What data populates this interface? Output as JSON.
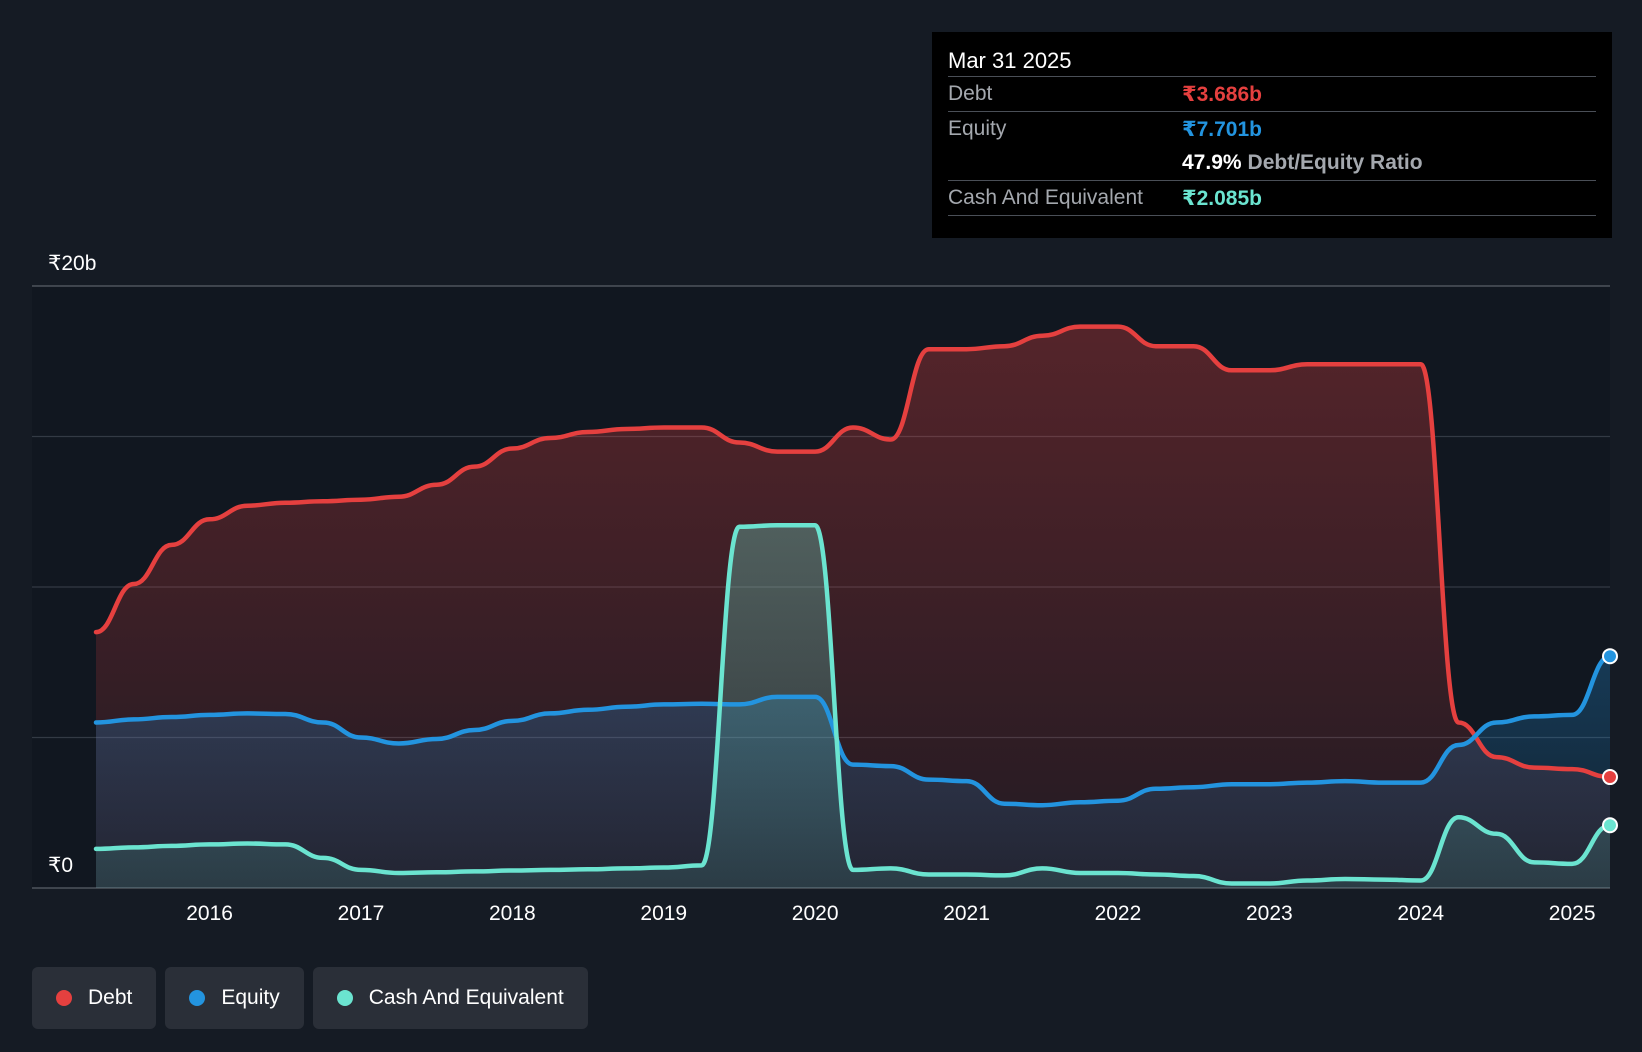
{
  "tooltip": {
    "date": "Mar 31 2025",
    "debt_label": "Debt",
    "debt_value": "₹3.686b",
    "equity_label": "Equity",
    "equity_value": "₹7.701b",
    "ratio_value": "47.9%",
    "ratio_label": "Debt/Equity Ratio",
    "cash_label": "Cash And Equivalent",
    "cash_value": "₹2.085b"
  },
  "legend": [
    {
      "label": "Debt",
      "color": "#e5403f"
    },
    {
      "label": "Equity",
      "color": "#2394df"
    },
    {
      "label": "Cash And Equivalent",
      "color": "#6be4d0"
    }
  ],
  "chart_data": {
    "type": "area",
    "x_unit": "year",
    "y_tick_labels": [
      "₹0",
      "₹20b"
    ],
    "y_ticks": [
      0,
      5,
      10,
      15,
      20
    ],
    "ylim": [
      0,
      20
    ],
    "xlim": [
      2014.75,
      2025.25
    ],
    "x_ticks": [
      2016,
      2017,
      2018,
      2019,
      2020,
      2021,
      2022,
      2023,
      2024,
      2025
    ],
    "x_tick_labels": [
      "2016",
      "2017",
      "2018",
      "2019",
      "2020",
      "2021",
      "2022",
      "2023",
      "2024",
      "2025"
    ],
    "grid": true,
    "legend_position": "bottom-left",
    "series": [
      {
        "name": "Debt",
        "color": "#e5403f",
        "points": [
          [
            2015.25,
            8.5
          ],
          [
            2015.5,
            10.1
          ],
          [
            2015.75,
            11.4
          ],
          [
            2016.0,
            12.25
          ],
          [
            2016.25,
            12.7
          ],
          [
            2016.5,
            12.8
          ],
          [
            2016.75,
            12.85
          ],
          [
            2017.0,
            12.9
          ],
          [
            2017.25,
            13.0
          ],
          [
            2017.5,
            13.4
          ],
          [
            2017.75,
            14.0
          ],
          [
            2018.0,
            14.6
          ],
          [
            2018.25,
            14.95
          ],
          [
            2018.5,
            15.15
          ],
          [
            2018.75,
            15.25
          ],
          [
            2019.0,
            15.3
          ],
          [
            2019.25,
            15.3
          ],
          [
            2019.5,
            14.8
          ],
          [
            2019.75,
            14.5
          ],
          [
            2020.0,
            14.5
          ],
          [
            2020.25,
            15.3
          ],
          [
            2020.5,
            14.9
          ],
          [
            2020.75,
            17.9
          ],
          [
            2021.0,
            17.9
          ],
          [
            2021.25,
            18.0
          ],
          [
            2021.5,
            18.35
          ],
          [
            2021.75,
            18.65
          ],
          [
            2022.0,
            18.65
          ],
          [
            2022.25,
            18.0
          ],
          [
            2022.5,
            18.0
          ],
          [
            2022.75,
            17.2
          ],
          [
            2023.0,
            17.2
          ],
          [
            2023.25,
            17.4
          ],
          [
            2023.5,
            17.4
          ],
          [
            2023.75,
            17.4
          ],
          [
            2024.0,
            17.4
          ],
          [
            2024.25,
            5.5
          ],
          [
            2024.5,
            4.35
          ],
          [
            2024.75,
            4.0
          ],
          [
            2025.0,
            3.95
          ],
          [
            2025.25,
            3.686
          ]
        ]
      },
      {
        "name": "Equity",
        "color": "#2394df",
        "points": [
          [
            2015.25,
            5.5
          ],
          [
            2015.5,
            5.6
          ],
          [
            2015.75,
            5.68
          ],
          [
            2016.0,
            5.75
          ],
          [
            2016.25,
            5.8
          ],
          [
            2016.5,
            5.78
          ],
          [
            2016.75,
            5.5
          ],
          [
            2017.0,
            5.0
          ],
          [
            2017.25,
            4.8
          ],
          [
            2017.5,
            4.95
          ],
          [
            2017.75,
            5.25
          ],
          [
            2018.0,
            5.55
          ],
          [
            2018.25,
            5.8
          ],
          [
            2018.5,
            5.92
          ],
          [
            2018.75,
            6.02
          ],
          [
            2019.0,
            6.1
          ],
          [
            2019.25,
            6.12
          ],
          [
            2019.5,
            6.1
          ],
          [
            2019.75,
            6.35
          ],
          [
            2020.0,
            6.35
          ],
          [
            2020.25,
            4.1
          ],
          [
            2020.5,
            4.05
          ],
          [
            2020.75,
            3.6
          ],
          [
            2021.0,
            3.55
          ],
          [
            2021.25,
            2.8
          ],
          [
            2021.5,
            2.75
          ],
          [
            2021.75,
            2.85
          ],
          [
            2022.0,
            2.9
          ],
          [
            2022.25,
            3.3
          ],
          [
            2022.5,
            3.35
          ],
          [
            2022.75,
            3.45
          ],
          [
            2023.0,
            3.45
          ],
          [
            2023.25,
            3.5
          ],
          [
            2023.5,
            3.55
          ],
          [
            2023.75,
            3.5
          ],
          [
            2024.0,
            3.5
          ],
          [
            2024.25,
            4.75
          ],
          [
            2024.5,
            5.5
          ],
          [
            2024.75,
            5.7
          ],
          [
            2025.0,
            5.75
          ],
          [
            2025.25,
            7.701
          ]
        ]
      },
      {
        "name": "Cash And Equivalent",
        "color": "#6be4d0",
        "points": [
          [
            2015.25,
            1.3
          ],
          [
            2015.5,
            1.35
          ],
          [
            2015.75,
            1.4
          ],
          [
            2016.0,
            1.45
          ],
          [
            2016.25,
            1.48
          ],
          [
            2016.5,
            1.45
          ],
          [
            2016.75,
            1.0
          ],
          [
            2017.0,
            0.6
          ],
          [
            2017.25,
            0.5
          ],
          [
            2017.5,
            0.52
          ],
          [
            2017.75,
            0.55
          ],
          [
            2018.0,
            0.58
          ],
          [
            2018.25,
            0.6
          ],
          [
            2018.5,
            0.62
          ],
          [
            2018.75,
            0.65
          ],
          [
            2019.0,
            0.68
          ],
          [
            2019.25,
            0.75
          ],
          [
            2019.5,
            12.0
          ],
          [
            2019.75,
            12.05
          ],
          [
            2020.0,
            12.05
          ],
          [
            2020.25,
            0.6
          ],
          [
            2020.5,
            0.65
          ],
          [
            2020.75,
            0.45
          ],
          [
            2021.0,
            0.45
          ],
          [
            2021.25,
            0.42
          ],
          [
            2021.5,
            0.65
          ],
          [
            2021.75,
            0.5
          ],
          [
            2022.0,
            0.5
          ],
          [
            2022.25,
            0.45
          ],
          [
            2022.5,
            0.4
          ],
          [
            2022.75,
            0.15
          ],
          [
            2023.0,
            0.15
          ],
          [
            2023.25,
            0.25
          ],
          [
            2023.5,
            0.3
          ],
          [
            2023.75,
            0.28
          ],
          [
            2024.0,
            0.25
          ],
          [
            2024.25,
            2.35
          ],
          [
            2024.5,
            1.8
          ],
          [
            2024.75,
            0.85
          ],
          [
            2025.0,
            0.8
          ],
          [
            2025.25,
            2.085
          ]
        ]
      }
    ]
  }
}
